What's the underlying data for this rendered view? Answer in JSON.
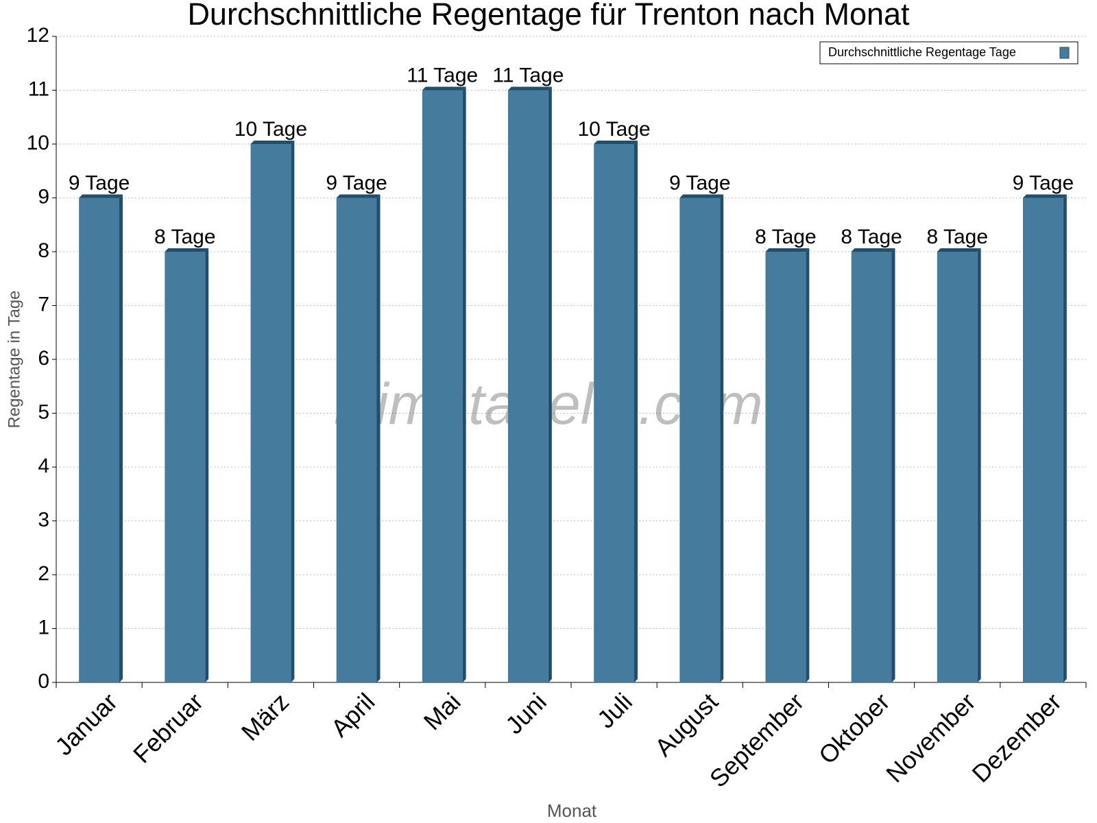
{
  "chart_data": {
    "type": "bar",
    "title": "Durchschnittliche Regentage für Trenton nach Monat",
    "x_label": "Monat",
    "y_label": "Regentage in Tage",
    "watermark": "klimatabelle.com",
    "categories": [
      "Januar",
      "Februar",
      "März",
      "April",
      "Mai",
      "Juni",
      "Juli",
      "August",
      "September",
      "Oktober",
      "November",
      "Dezember"
    ],
    "series": [
      {
        "name": "Durchschnittliche Regentage Tage",
        "color": "#457b9d",
        "values": [
          9,
          8,
          10,
          9,
          11,
          11,
          10,
          9,
          8,
          8,
          8,
          9
        ],
        "value_labels": [
          "9 Tage",
          "8 Tage",
          "10 Tage",
          "9 Tage",
          "11 Tage",
          "11 Tage",
          "10 Tage",
          "9 Tage",
          "8 Tage",
          "8 Tage",
          "8 Tage",
          "9 Tage"
        ]
      }
    ],
    "ylim": [
      0,
      12
    ],
    "yticks": [
      0,
      1,
      2,
      3,
      4,
      5,
      6,
      7,
      8,
      9,
      10,
      11,
      12
    ],
    "grid": true,
    "legend": "top-right"
  }
}
